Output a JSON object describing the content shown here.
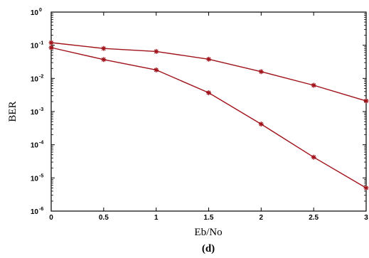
{
  "chart_data": {
    "type": "line",
    "xlabel": "Eb/No",
    "ylabel": "BER",
    "caption": "(d)",
    "x": [
      0,
      0.5,
      1,
      1.5,
      2,
      2.5,
      3
    ],
    "x_tick_labels": [
      "0",
      "0.5",
      "1",
      "1.5",
      "2",
      "2.5",
      "3"
    ],
    "xlim": [
      0,
      3
    ],
    "ylim": [
      1e-06,
      1
    ],
    "y_scale": "log",
    "y_ticks": [
      {
        "base": "10",
        "exp": "0"
      },
      {
        "base": "10",
        "exp": "-1"
      },
      {
        "base": "10",
        "exp": "-2"
      },
      {
        "base": "10",
        "exp": "-3"
      },
      {
        "base": "10",
        "exp": "-4"
      },
      {
        "base": "10",
        "exp": "-5"
      },
      {
        "base": "10",
        "exp": "-6"
      }
    ],
    "grid": false,
    "series": [
      {
        "values": [
          0.12,
          0.08,
          0.065,
          0.038,
          0.016,
          0.0062,
          0.0021
        ],
        "color": "#a0121a",
        "marker": "star"
      },
      {
        "values": [
          0.085,
          0.037,
          0.018,
          0.0037,
          0.00042,
          4.2e-05,
          5e-06
        ],
        "color": "#a0121a",
        "marker": "star"
      }
    ]
  }
}
